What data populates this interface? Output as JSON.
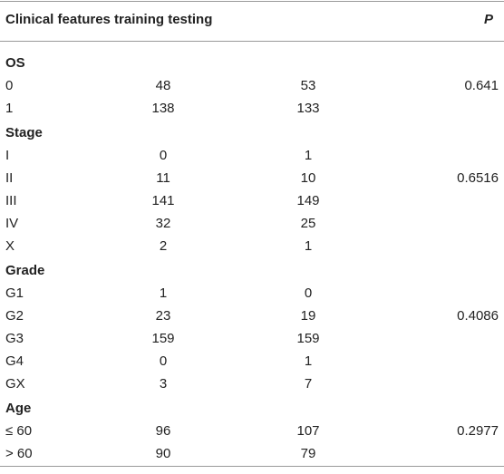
{
  "header": {
    "title": "Clinical features training testing",
    "p": "P"
  },
  "sections": [
    {
      "title": "OS",
      "rows": [
        [
          "0",
          48,
          53,
          0.641
        ],
        [
          "1",
          138,
          133
        ]
      ]
    },
    {
      "title": "Stage",
      "rows": [
        [
          "I",
          0,
          1
        ],
        [
          "II",
          11,
          10,
          0.6516
        ],
        [
          "III",
          141,
          149
        ],
        [
          "IV",
          32,
          25
        ],
        [
          "X",
          2,
          1
        ]
      ]
    },
    {
      "title": "Grade",
      "rows": [
        [
          "G1",
          1,
          0
        ],
        [
          "G2",
          23,
          19,
          0.4086
        ],
        [
          "G3",
          159,
          159
        ],
        [
          "G4",
          0,
          1
        ],
        [
          "GX",
          3,
          7
        ]
      ]
    },
    {
      "title": "Age",
      "rows": [
        [
          "≤ 60",
          96,
          107,
          0.2977
        ],
        [
          "> 60",
          90,
          79
        ]
      ]
    }
  ]
}
